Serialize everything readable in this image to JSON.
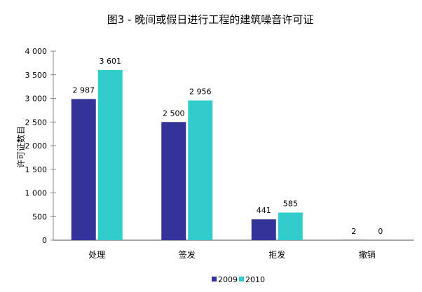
{
  "chart_data": {
    "type": "bar",
    "title": "图3 - 晚间或假日进行工程的建筑噪音许可证",
    "xlabel": "",
    "ylabel": "许可证数目",
    "categories": [
      "处理",
      "签发",
      "拒发",
      "撤销"
    ],
    "series": [
      {
        "name": "2009",
        "values": [
          2987,
          2500,
          441,
          2
        ],
        "labels": [
          "2 987",
          "2 500",
          "441",
          "2"
        ],
        "color": "#333399"
      },
      {
        "name": "2010",
        "values": [
          3601,
          2956,
          585,
          0
        ],
        "labels": [
          "3 601",
          "2 956",
          "585",
          "0"
        ],
        "color": "#33CCCC"
      }
    ],
    "ylim": [
      0,
      4000
    ],
    "yticks": [
      0,
      500,
      1000,
      1500,
      2000,
      2500,
      3000,
      3500,
      4000
    ],
    "ytick_labels": [
      "0",
      "500",
      "1 000",
      "1 500",
      "2 000",
      "2 500",
      "3 000",
      "3 500",
      "4 000"
    ],
    "grid": false,
    "legend_position": "bottom"
  }
}
